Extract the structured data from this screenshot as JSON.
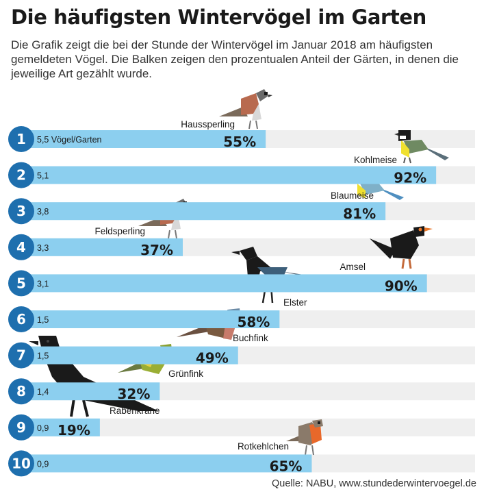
{
  "header": {
    "title": "Die häufigsten Wintervögel im Garten",
    "subtitle": "Die Grafik zeigt die bei der Stunde der Wintervögel im Januar 2018 am häufigsten gemeldeten Vögel. Die Balken zeigen den prozentualen Anteil der Gärten, in denen die jeweilige Art gezählt wurde."
  },
  "source": "Quelle: NABU, www.stundederwintervoegel.de",
  "colors": {
    "bar": "#8ccfef",
    "track": "#efefef",
    "badge": "#1e6fae"
  },
  "chart_data": {
    "type": "bar",
    "orientation": "horizontal",
    "xlim": [
      0,
      100
    ],
    "value_unit": "%",
    "title": "Die häufigsten Wintervögel im Garten",
    "categories": [
      "Haussperling",
      "Kohlmeise",
      "Blaumeise",
      "Feldsperling",
      "Amsel",
      "Elster",
      "Buchfink",
      "Grünfink",
      "Rabenkrähe",
      "Rotkehlchen"
    ],
    "ranks": [
      "1",
      "2",
      "3",
      "4",
      "5",
      "6",
      "7",
      "8",
      "9",
      "10"
    ],
    "values": [
      55,
      92,
      81,
      37,
      90,
      58,
      49,
      32,
      19,
      65
    ],
    "value_labels": [
      "55%",
      "92%",
      "81%",
      "37%",
      "90%",
      "58%",
      "49%",
      "32%",
      "19%",
      "65%"
    ],
    "birds_per_garden": [
      "5,5 Vögel/Garten",
      "5,1",
      "3,8",
      "3,3",
      "3,1",
      "1,5",
      "1,5",
      "1,4",
      "0,9",
      "0,9"
    ],
    "icons": [
      "house-sparrow-icon",
      "great-tit-icon",
      "blue-tit-icon",
      "tree-sparrow-icon",
      "blackbird-icon",
      "magpie-icon",
      "chaffinch-icon",
      "greenfinch-icon",
      "carrion-crow-icon",
      "robin-icon"
    ]
  }
}
